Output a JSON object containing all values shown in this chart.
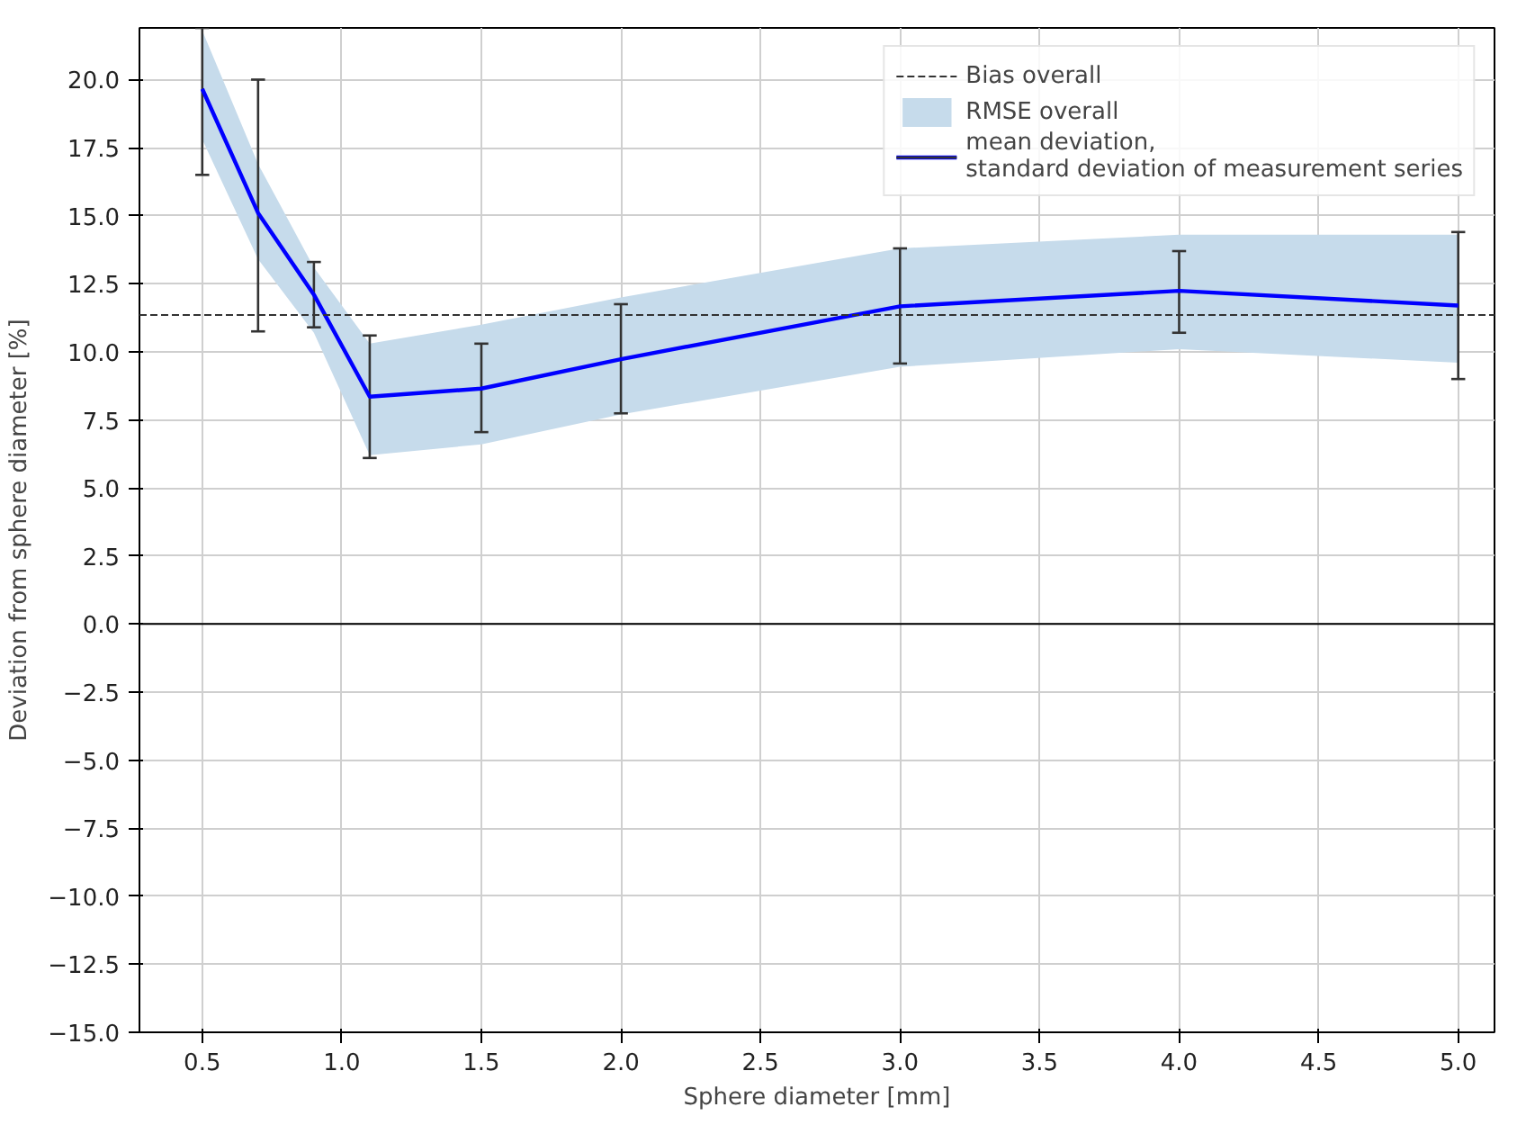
{
  "chart_data": {
    "type": "line",
    "xlabel": "Sphere diameter [mm]",
    "ylabel": "Deviation from sphere diameter [%]",
    "x": [
      0.5,
      0.7,
      0.9,
      1.1,
      1.5,
      2.0,
      3.0,
      4.0,
      5.0
    ],
    "series": [
      {
        "type": "area",
        "name": "RMSE overall",
        "color": "#c6dbeb",
        "values": [
          null,
          null,
          null,
          null,
          null,
          null,
          null,
          null,
          null
        ],
        "lower": [
          17.8,
          13.4,
          10.7,
          6.2,
          6.6,
          7.7,
          9.45,
          10.1,
          9.6
        ],
        "upper": [
          21.8,
          16.9,
          13.1,
          10.3,
          11.0,
          12.0,
          13.8,
          14.3,
          14.3
        ]
      },
      {
        "name": "mean deviation,\nstandard deviation of measurement series",
        "color": "#0000ff",
        "values": [
          19.66,
          15.1,
          12.1,
          8.35,
          8.65,
          9.73,
          11.67,
          12.24,
          11.7
        ],
        "errors": [
          [
            16.5,
            21.9
          ],
          [
            10.75,
            20.0
          ],
          [
            10.9,
            13.3
          ],
          [
            6.1,
            10.6
          ],
          [
            7.05,
            10.3
          ],
          [
            7.74,
            11.75
          ],
          [
            9.57,
            13.8
          ],
          [
            10.7,
            13.7
          ],
          [
            9.0,
            14.4
          ]
        ]
      }
    ],
    "ref_lines": [
      {
        "axis": "y",
        "value": 11.35,
        "label": "Bias overall",
        "color": "#333333",
        "line_style": "dashed"
      },
      {
        "axis": "y",
        "value": 0,
        "color": "#000000",
        "line_style": "solid"
      }
    ],
    "xlim": [
      0.275,
      5.13
    ],
    "ylim": [
      -15,
      21.9
    ],
    "xticks": [
      {
        "value": 0.5,
        "label": "0.5"
      },
      {
        "value": 1.0,
        "label": "1.0"
      },
      {
        "value": 1.5,
        "label": "1.5"
      },
      {
        "value": 2.0,
        "label": "2.0"
      },
      {
        "value": 2.5,
        "label": "2.5"
      },
      {
        "value": 3.0,
        "label": "3.0"
      },
      {
        "value": 3.5,
        "label": "3.5"
      },
      {
        "value": 4.0,
        "label": "4.0"
      },
      {
        "value": 4.5,
        "label": "4.5"
      },
      {
        "value": 5.0,
        "label": "5.0"
      }
    ],
    "yticks": [
      {
        "value": -15,
        "label": "−15.0"
      },
      {
        "value": -12.5,
        "label": "−12.5"
      },
      {
        "value": -10,
        "label": "−10.0"
      },
      {
        "value": -7.5,
        "label": "−7.5"
      },
      {
        "value": -5,
        "label": "−5.0"
      },
      {
        "value": -2.5,
        "label": "−2.5"
      },
      {
        "value": 0,
        "label": "0.0"
      },
      {
        "value": 2.5,
        "label": "2.5"
      },
      {
        "value": 5,
        "label": "5.0"
      },
      {
        "value": 7.5,
        "label": "7.5"
      },
      {
        "value": 10,
        "label": "10.0"
      },
      {
        "value": 12.5,
        "label": "12.5"
      },
      {
        "value": 15,
        "label": "15.0"
      },
      {
        "value": 17.5,
        "label": "17.5"
      },
      {
        "value": 20,
        "label": "20.0"
      }
    ],
    "grid": true,
    "legend": "top right"
  }
}
